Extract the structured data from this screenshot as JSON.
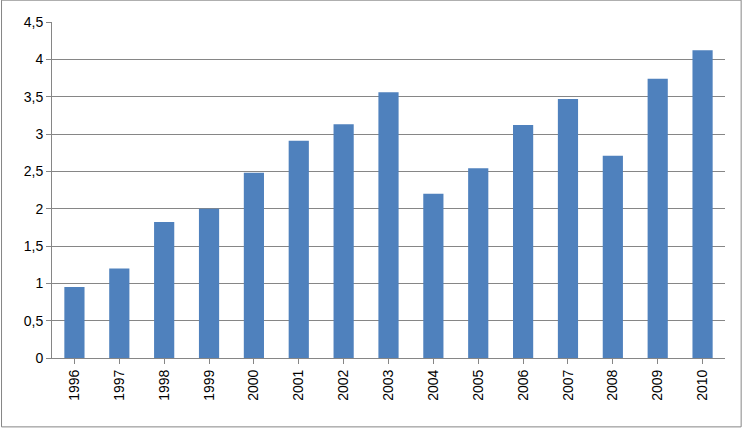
{
  "chart_data": {
    "type": "bar",
    "categories": [
      "1996",
      "1997",
      "1998",
      "1999",
      "2000",
      "2001",
      "2002",
      "2003",
      "2004",
      "2005",
      "2006",
      "2007",
      "2008",
      "2009",
      "2010"
    ],
    "values": [
      0.95,
      1.2,
      1.82,
      2.0,
      2.48,
      2.91,
      3.13,
      3.56,
      2.2,
      2.54,
      3.12,
      3.47,
      2.71,
      3.74,
      4.12
    ],
    "color": "#4f81bd",
    "ylim": [
      0,
      4.5
    ],
    "yticks": [
      0,
      {
        "value": 0.5,
        "label": "0,5"
      },
      1,
      {
        "value": 1.5,
        "label": "1,5"
      },
      2,
      {
        "value": 2.5,
        "label": "2,5"
      },
      3,
      {
        "value": 3.5,
        "label": "3,5"
      },
      4,
      {
        "value": 4.5,
        "label": "4,5"
      }
    ],
    "grid": true
  }
}
